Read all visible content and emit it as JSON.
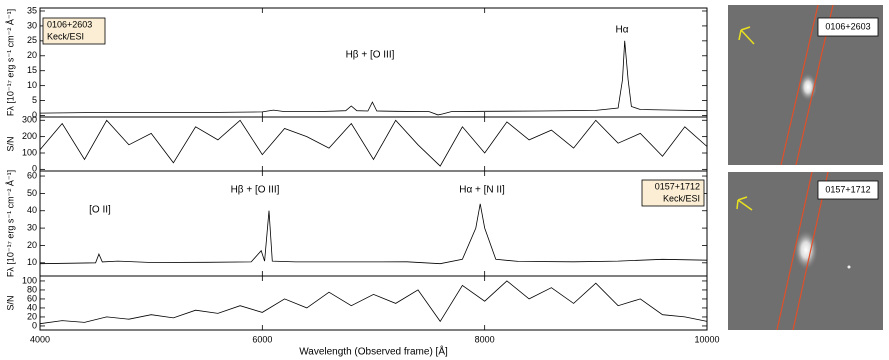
{
  "chart_data": [
    {
      "type": "line",
      "ylabel": "Fλ [10⁻¹⁷ erg s⁻¹ cm⁻² Å⁻¹]",
      "annotations": [
        "Hβ + [O III]",
        "Hα"
      ],
      "label_lines": [
        "0106+2603",
        "Keck/ESI"
      ],
      "x": [
        4000,
        4500,
        5000,
        5500,
        6000,
        6100,
        6200,
        6500,
        6750,
        6800,
        6850,
        6950,
        6990,
        7030,
        7200,
        7500,
        7580,
        7620,
        7700,
        8000,
        8500,
        9000,
        9200,
        9240,
        9260,
        9290,
        9320,
        9400,
        9700,
        10000
      ],
      "series": [
        {
          "color": "#000000",
          "values": [
            0.8,
            1,
            1,
            1,
            1.2,
            1.8,
            1.3,
            1.3,
            1.6,
            3.2,
            1.6,
            1.5,
            4.5,
            1.5,
            1.4,
            1.3,
            0.2,
            0.5,
            1.3,
            1.4,
            1.5,
            1.7,
            2.5,
            12,
            25,
            12,
            3,
            2,
            1.8,
            1.6
          ]
        }
      ],
      "xlim": [
        4000,
        10000
      ],
      "ylim": [
        -0.5,
        36
      ],
      "yticks": [
        0,
        5,
        10,
        15,
        20,
        25,
        30,
        35
      ]
    },
    {
      "type": "line",
      "ylabel": "S/N",
      "x": [
        4000,
        4200,
        4400,
        4600,
        4800,
        5000,
        5200,
        5400,
        5600,
        5800,
        6000,
        6200,
        6400,
        6600,
        6800,
        7000,
        7200,
        7400,
        7600,
        7800,
        8000,
        8200,
        8400,
        8600,
        8800,
        9000,
        9200,
        9400,
        9600,
        9800,
        10000
      ],
      "series": [
        {
          "color": "#000000",
          "values": [
            120,
            280,
            60,
            300,
            150,
            220,
            40,
            260,
            180,
            300,
            90,
            250,
            200,
            130,
            280,
            60,
            300,
            150,
            20,
            260,
            100,
            290,
            180,
            240,
            130,
            300,
            160,
            220,
            80,
            260,
            140
          ]
        }
      ],
      "xlim": [
        4000,
        10000
      ],
      "ylim": [
        -10,
        320
      ],
      "yticks": [
        0,
        100,
        200,
        300
      ]
    },
    {
      "type": "line",
      "ylabel": "Fλ [10⁻¹⁷ erg s⁻¹ cm⁻² Å⁻¹]",
      "annotations": [
        "[O II]",
        "Hβ + [O III]",
        "Hα + [N II]"
      ],
      "label_lines": [
        "0157+1712",
        "Keck/ESI"
      ],
      "x": [
        4000,
        4300,
        4500,
        4530,
        4560,
        4700,
        5000,
        5500,
        5900,
        5990,
        6020,
        6060,
        6090,
        6300,
        6800,
        7300,
        7600,
        7800,
        7920,
        7960,
        8000,
        8100,
        8300,
        8800,
        9200,
        9600,
        10000
      ],
      "series": [
        {
          "color": "#000000",
          "values": [
            9.5,
            9.8,
            10,
            15,
            10.5,
            11,
            10.2,
            10.3,
            10.5,
            17,
            11,
            40,
            11,
            10.5,
            10.5,
            10.6,
            9.5,
            12,
            30,
            44,
            30,
            12,
            10.8,
            10.6,
            11,
            12,
            11.5
          ]
        }
      ],
      "xlim": [
        4000,
        10000
      ],
      "ylim": [
        2.4,
        62.9
      ],
      "yticks": [
        10,
        20,
        30,
        40,
        50,
        60
      ]
    },
    {
      "type": "line",
      "ylabel": "S/N",
      "xlabel": "Wavelength (Observed frame) [Å]",
      "x": [
        4000,
        4200,
        4400,
        4600,
        4800,
        5000,
        5200,
        5400,
        5600,
        5800,
        6000,
        6200,
        6400,
        6600,
        6800,
        7000,
        7200,
        7400,
        7600,
        7800,
        8000,
        8200,
        8400,
        8600,
        8800,
        9000,
        9200,
        9400,
        9600,
        9800,
        10000
      ],
      "series": [
        {
          "color": "#000000",
          "values": [
            5,
            12,
            8,
            20,
            15,
            25,
            18,
            35,
            28,
            45,
            30,
            60,
            40,
            75,
            45,
            70,
            50,
            80,
            10,
            90,
            55,
            100,
            60,
            85,
            50,
            95,
            45,
            60,
            25,
            20,
            10
          ]
        }
      ],
      "xlim": [
        4000,
        10000
      ],
      "ylim": [
        -9,
        111
      ],
      "yticks": [
        0,
        20,
        40,
        60,
        80,
        100
      ],
      "xticks": [
        4000,
        6000,
        8000,
        10000
      ]
    }
  ],
  "images": [
    {
      "label": "0106+2603"
    },
    {
      "label": "0157+1712"
    }
  ]
}
